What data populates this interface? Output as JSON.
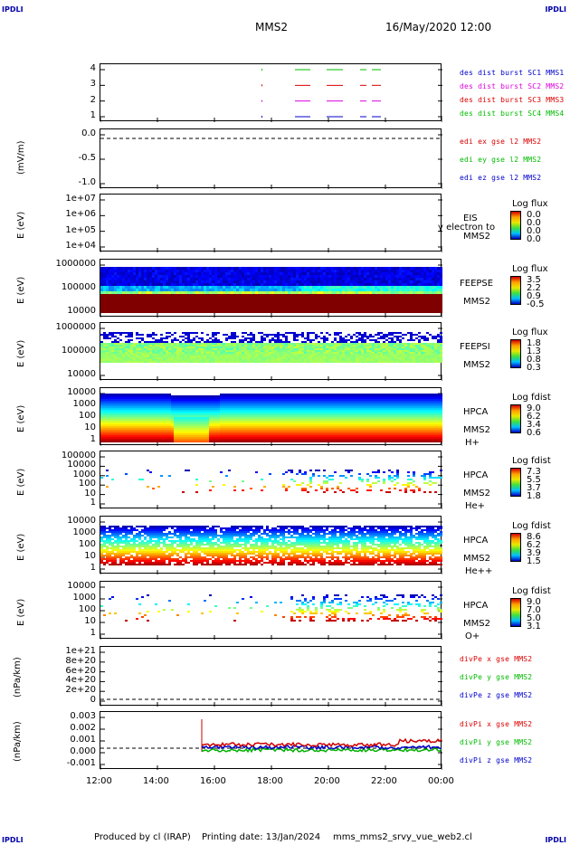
{
  "header": {
    "corner_left": "IPDLI",
    "corner_right": "IPDLI",
    "mission": "MMS2",
    "datetime": "16/May/2020 12:00"
  },
  "footer": {
    "produced": "Produced by cl (IRAP)",
    "printed": "Printing date: 13/Jan/2024",
    "file": "mms_mms2_srvy_vue_web2.cl",
    "corner_left": "IPDLI",
    "corner_right": "IPDLI"
  },
  "colors": {
    "blue": "#0000cc",
    "magenta": "#dd00dd",
    "red": "#dd0000",
    "green": "#00bb00"
  },
  "chart_data": [
    {
      "type": "line",
      "name": "panel-dsl",
      "yticks": [
        "4",
        "3",
        "2",
        "1"
      ],
      "legend": [
        "des dist burst SC1 MMS1",
        "des dist burst SC2 MMS2",
        "des dist burst SC3 MMS3",
        "des dist burst SC4 MMS4"
      ],
      "x": [
        "12:00",
        "14:00",
        "16:00",
        "18:00",
        "20:00",
        "22:00",
        "00:00"
      ]
    },
    {
      "type": "line",
      "name": "panel-edi",
      "ylabel": "(mV/m)",
      "yticks": [
        "0.0",
        "-0.5",
        "-1.0"
      ],
      "legend": [
        "edi ex gse l2 MMS2",
        "edi ey gse l2 MMS2",
        "edi ez gse l2 MMS2"
      ]
    },
    {
      "type": "heatmap",
      "name": "panel-eis",
      "ylabel": "E (eV)",
      "yticks": [
        "1e+07",
        "1e+06",
        "1e+05",
        "1e+04"
      ],
      "instrument": [
        "EIS",
        "MMS2"
      ],
      "overlay": "y electron to",
      "cb_title": "Log flux",
      "cb_values": [
        "0.0",
        "0.0",
        "0.0",
        "0.0"
      ]
    },
    {
      "type": "heatmap",
      "name": "panel-feepse",
      "ylabel": "E (eV)",
      "yticks": [
        "1000000",
        "100000",
        "10000"
      ],
      "instrument": [
        "FEEPSE",
        "MMS2"
      ],
      "cb_title": "Log flux",
      "cb_values": [
        "3.5",
        "2.2",
        "0.9",
        "-0.5"
      ]
    },
    {
      "type": "heatmap",
      "name": "panel-feepsi",
      "ylabel": "E (eV)",
      "yticks": [
        "1000000",
        "100000",
        "10000"
      ],
      "instrument": [
        "FEEPSI",
        "MMS2"
      ],
      "cb_title": "Log flux",
      "cb_values": [
        "1.8",
        "1.3",
        "0.8",
        "0.3"
      ]
    },
    {
      "type": "heatmap",
      "name": "panel-hpca-h",
      "ylabel": "E (eV)",
      "yticks": [
        "10000",
        "1000",
        "100",
        "10",
        "1"
      ],
      "instrument": [
        "HPCA",
        "MMS2",
        "H+"
      ],
      "cb_title": "Log fdist",
      "cb_values": [
        "9.0",
        "6.2",
        "3.4",
        "0.6"
      ]
    },
    {
      "type": "heatmap",
      "name": "panel-hpca-he",
      "ylabel": "E (eV)",
      "yticks": [
        "100000",
        "10000",
        "1000",
        "100",
        "10",
        "1"
      ],
      "instrument": [
        "HPCA",
        "MMS2",
        "He+"
      ],
      "cb_title": "Log fdist",
      "cb_values": [
        "7.3",
        "5.5",
        "3.7",
        "1.8"
      ]
    },
    {
      "type": "heatmap",
      "name": "panel-hpca-hepp",
      "ylabel": "E (eV)",
      "yticks": [
        "10000",
        "1000",
        "100",
        "10",
        "1"
      ],
      "instrument": [
        "HPCA",
        "MMS2",
        "He++"
      ],
      "cb_title": "Log fdist",
      "cb_values": [
        "8.6",
        "6.2",
        "3.9",
        "1.5"
      ]
    },
    {
      "type": "heatmap",
      "name": "panel-hpca-o",
      "ylabel": "E (eV)",
      "yticks": [
        "10000",
        "1000",
        "100",
        "10",
        "1"
      ],
      "instrument": [
        "HPCA",
        "MMS2",
        "O+"
      ],
      "cb_title": "Log fdist",
      "cb_values": [
        "9.0",
        "7.0",
        "5.0",
        "3.1"
      ]
    },
    {
      "type": "line",
      "name": "panel-divpe",
      "ylabel": "(nPa/km)",
      "yticks": [
        "1e+21",
        "8e+20",
        "6e+20",
        "4e+20",
        "2e+20",
        "0"
      ],
      "legend": [
        "divPe x gse MMS2",
        "divPe y gse MMS2",
        "divPe z gse MMS2"
      ]
    },
    {
      "type": "line",
      "name": "panel-divpi",
      "ylabel": "(nPa/km)",
      "yticks": [
        "0.003",
        "0.002",
        "0.001",
        "0.000",
        "-0.001"
      ],
      "legend": [
        "divPi x gse MMS2",
        "divPi y gse MMS2",
        "divPi z gse MMS2"
      ]
    }
  ],
  "xaxis": [
    "12:00",
    "14:00",
    "16:00",
    "18:00",
    "20:00",
    "22:00",
    "00:00"
  ]
}
